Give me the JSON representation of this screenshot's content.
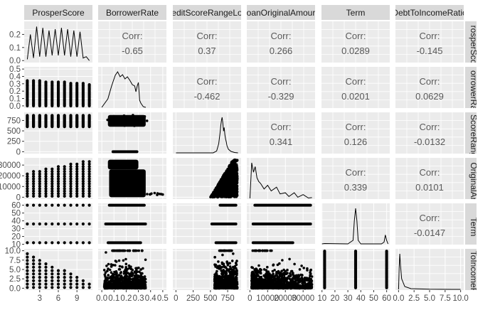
{
  "chart_data": {
    "type": "scatter",
    "variables": [
      "ProsperScore",
      "BorrowerRate",
      "CreditScoreRangeLower",
      "LoanOriginalAmount",
      "Term",
      "DebtToIncomeRatio"
    ],
    "column_strip_labels": [
      "ProsperScore",
      "BorrowerRate",
      "editScoreRangeLo",
      "oanOriginalAmour",
      "Term",
      "DebtToIncomeRatio"
    ],
    "row_strip_labels": [
      "rosperSco",
      "orrowerRa",
      "ScoreRang",
      "OriginalAr",
      "Term",
      "ToIncomeR"
    ],
    "correlation_label": "Corr:",
    "correlations": [
      {
        "row": 0,
        "col": 1,
        "value": "-0.65"
      },
      {
        "row": 0,
        "col": 2,
        "value": "0.37"
      },
      {
        "row": 0,
        "col": 3,
        "value": "0.266"
      },
      {
        "row": 0,
        "col": 4,
        "value": "0.0289"
      },
      {
        "row": 0,
        "col": 5,
        "value": "-0.145"
      },
      {
        "row": 1,
        "col": 2,
        "value": "-0.462"
      },
      {
        "row": 1,
        "col": 3,
        "value": "-0.329"
      },
      {
        "row": 1,
        "col": 4,
        "value": "0.0201"
      },
      {
        "row": 1,
        "col": 5,
        "value": "0.0629"
      },
      {
        "row": 2,
        "col": 3,
        "value": "0.341"
      },
      {
        "row": 2,
        "col": 4,
        "value": "0.126"
      },
      {
        "row": 2,
        "col": 5,
        "value": "-0.0132"
      },
      {
        "row": 3,
        "col": 4,
        "value": "0.339"
      },
      {
        "row": 3,
        "col": 5,
        "value": "0.0101"
      },
      {
        "row": 4,
        "col": 5,
        "value": "-0.0147"
      }
    ],
    "x_ticks": [
      {
        "values": [
          3,
          6,
          9
        ],
        "labels": [
          "3",
          "6",
          "9"
        ],
        "range": [
          0.5,
          11.5
        ]
      },
      {
        "values": [
          0.0,
          0.1,
          0.2,
          0.3,
          0.4,
          0.5
        ],
        "labels": [
          "0.0",
          "0.1",
          "0.2",
          "0.3",
          "0.4",
          "0.5"
        ],
        "range": [
          -0.03,
          0.53
        ]
      },
      {
        "values": [
          0,
          250,
          500,
          750
        ],
        "labels": [
          "0",
          "250",
          "500",
          "750"
        ],
        "range": [
          -45,
          945
        ]
      },
      {
        "values": [
          0,
          10000,
          20000,
          30000
        ],
        "labels": [
          "0",
          "10000",
          "20000",
          "30000"
        ],
        "range": [
          -1750,
          36750
        ]
      },
      {
        "values": [
          10,
          20,
          30,
          40,
          50,
          60
        ],
        "labels": [
          "10",
          "20",
          "30",
          "40",
          "50",
          "60"
        ],
        "range": [
          9.6,
          62.4
        ]
      },
      {
        "values": [
          0.0,
          2.5,
          5.0,
          7.5,
          10.0
        ],
        "labels": [
          "0.0",
          "2.5",
          "5.0",
          "7.5",
          "10.0"
        ],
        "range": [
          -0.5,
          10.5
        ]
      }
    ],
    "y_ticks": [
      {
        "values": [
          0.0,
          0.1,
          0.2
        ],
        "labels": [
          "0.0",
          "0.1",
          "0.2"
        ],
        "range": [
          -0.015,
          0.3
        ]
      },
      {
        "values": [
          0.0,
          0.1,
          0.2,
          0.3,
          0.4,
          0.5
        ],
        "labels": [
          "0.0",
          "0.1",
          "0.2",
          "0.3",
          "0.4",
          "0.5"
        ],
        "range": [
          -0.03,
          0.53
        ]
      },
      {
        "values": [
          0,
          250,
          500,
          750
        ],
        "labels": [
          "0",
          "250",
          "500",
          "750"
        ],
        "range": [
          -45,
          945
        ]
      },
      {
        "values": [
          0,
          10000,
          20000,
          30000
        ],
        "labels": [
          "0",
          "10000",
          "20000",
          "30000"
        ],
        "range": [
          -1750,
          36750
        ]
      },
      {
        "values": [
          10,
          20,
          30,
          40,
          50,
          60
        ],
        "labels": [
          "10",
          "20",
          "30",
          "40",
          "50",
          "60"
        ],
        "range": [
          9.6,
          62.4
        ]
      },
      {
        "values": [
          0.0,
          2.5,
          5.0,
          7.5,
          10.0
        ],
        "labels": [
          "0.0",
          "2.5",
          "5.0",
          "7.5",
          "10.0"
        ],
        "range": [
          -0.5,
          10.5
        ]
      }
    ],
    "y_tick_labels_shown": [
      [
        "0.0",
        "0.1",
        "0.2"
      ],
      [
        "0.0",
        "0.1",
        "0.2",
        "0.3",
        "0.4",
        "0.5"
      ],
      [
        "0",
        "250",
        "500",
        "750"
      ],
      [
        "0",
        "10000",
        "20000",
        "30000"
      ],
      [
        "10",
        "20",
        "30",
        "40",
        "50",
        "60"
      ],
      [
        "0.0",
        "2.5",
        "5.0",
        "7.5",
        "10.0"
      ]
    ],
    "densities": [
      {
        "x": [
          1,
          1.5,
          2,
          2.5,
          3,
          3.5,
          4,
          4.5,
          5,
          5.5,
          6,
          6.5,
          7,
          7.5,
          8,
          8.5,
          9,
          9.5,
          10,
          10.5,
          11
        ],
        "y": [
          0.01,
          0.2,
          0.02,
          0.26,
          0.03,
          0.25,
          0.03,
          0.23,
          0.04,
          0.24,
          0.04,
          0.25,
          0.04,
          0.24,
          0.03,
          0.23,
          0.03,
          0.22,
          0.02,
          0.03,
          0.0
        ]
      },
      {
        "x": [
          0.0,
          0.05,
          0.08,
          0.11,
          0.13,
          0.15,
          0.17,
          0.19,
          0.21,
          0.23,
          0.25,
          0.27,
          0.28,
          0.29,
          0.3,
          0.31,
          0.32,
          0.34,
          0.36
        ],
        "y": [
          0.0,
          0.12,
          0.3,
          0.45,
          0.5,
          0.43,
          0.46,
          0.4,
          0.43,
          0.38,
          0.32,
          0.3,
          0.22,
          0.3,
          0.35,
          0.1,
          0.06,
          0.01,
          0.0
        ]
      },
      {
        "x": [
          0,
          540,
          590,
          620,
          640,
          650,
          660,
          670,
          680,
          690,
          700,
          710,
          720,
          730,
          740,
          760,
          800,
          850,
          900
        ],
        "y": [
          0.0,
          0.0,
          0.05,
          0.25,
          0.55,
          0.75,
          0.9,
          0.98,
          0.82,
          0.6,
          0.7,
          0.5,
          0.38,
          0.3,
          0.2,
          0.1,
          0.04,
          0.01,
          0.0
        ]
      },
      {
        "x": [
          0,
          1000,
          2000,
          3000,
          4000,
          5000,
          6000,
          8000,
          10000,
          12000,
          15000,
          17000,
          20000,
          22000,
          25000,
          27000,
          30000,
          33000,
          35000
        ],
        "y": [
          0.0,
          0.95,
          0.7,
          0.85,
          0.55,
          0.45,
          0.4,
          0.25,
          0.35,
          0.2,
          0.3,
          0.12,
          0.15,
          0.05,
          0.15,
          0.03,
          0.1,
          0.01,
          0.02
        ]
      },
      {
        "x": [
          10,
          12,
          30,
          34,
          35,
          36,
          37,
          38,
          40,
          56,
          58,
          59,
          60,
          61
        ],
        "y": [
          0.0,
          0.01,
          0.0,
          0.1,
          0.65,
          1.0,
          0.65,
          0.1,
          0.0,
          0.0,
          0.05,
          0.25,
          0.1,
          0.0
        ]
      },
      {
        "x": [
          0.0,
          0.1,
          0.2,
          0.3,
          0.5,
          1.0,
          2.0,
          5.0,
          10.0
        ],
        "y": [
          0.0,
          0.6,
          1.0,
          0.7,
          0.3,
          0.08,
          0.02,
          0.005,
          0.0
        ]
      }
    ],
    "colors": {
      "panel": "#ebebeb",
      "strip": "#d9d9d9",
      "grid": "#ffffff",
      "points": "#000000",
      "corr_text": "#595959",
      "tick_text": "#4d4d4d"
    }
  }
}
